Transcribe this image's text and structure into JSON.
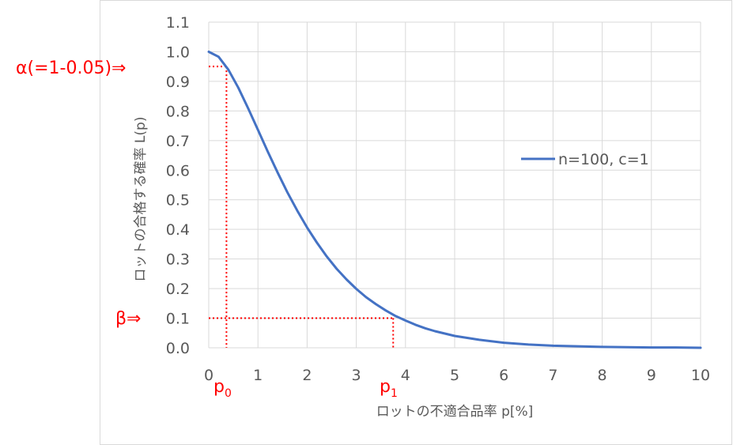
{
  "chart_data": {
    "type": "line",
    "xlabel": "ロットの不適合品率 p[%]",
    "ylabel": "ロットの合格する確率 L(p)",
    "xlim": [
      0,
      10
    ],
    "ylim": [
      0,
      1.1
    ],
    "x_ticks": [
      "0",
      "1",
      "2",
      "3",
      "4",
      "5",
      "6",
      "7",
      "8",
      "9",
      "10"
    ],
    "y_ticks": [
      "0.0",
      "0.1",
      "0.2",
      "0.3",
      "0.4",
      "0.5",
      "0.6",
      "0.7",
      "0.8",
      "0.9",
      "1.0",
      "1.1"
    ],
    "grid": true,
    "legend_position": "right",
    "series": [
      {
        "name": "n=100, c=1",
        "color": "#4472c4",
        "x": [
          0,
          0.2,
          0.4,
          0.6,
          0.8,
          1.0,
          1.2,
          1.4,
          1.6,
          1.8,
          2.0,
          2.2,
          2.4,
          2.6,
          2.8,
          3.0,
          3.2,
          3.4,
          3.6,
          3.8,
          4.0,
          4.2,
          4.4,
          4.6,
          4.8,
          5.0,
          5.5,
          6.0,
          6.5,
          7.0,
          7.5,
          8.0,
          8.5,
          9.0,
          9.5,
          10.0
        ],
        "y": [
          1.0,
          0.983,
          0.939,
          0.879,
          0.809,
          0.736,
          0.663,
          0.592,
          0.525,
          0.463,
          0.406,
          0.355,
          0.308,
          0.267,
          0.231,
          0.199,
          0.171,
          0.147,
          0.126,
          0.107,
          0.092,
          0.078,
          0.066,
          0.056,
          0.048,
          0.04,
          0.027,
          0.017,
          0.011,
          0.007,
          0.005,
          0.003,
          0.002,
          0.001,
          0.001,
          0.0
        ]
      }
    ],
    "annotations": {
      "alpha_label": "α(=1-0.05)⇒",
      "alpha_value": 0.95,
      "beta_label": "β⇒",
      "beta_value": 0.1,
      "p0_base": "p",
      "p0_sub": "0",
      "p0_x": 0.36,
      "p1_base": "p",
      "p1_sub": "1",
      "p1_x": 3.75,
      "guide_color": "#ff0000"
    }
  }
}
